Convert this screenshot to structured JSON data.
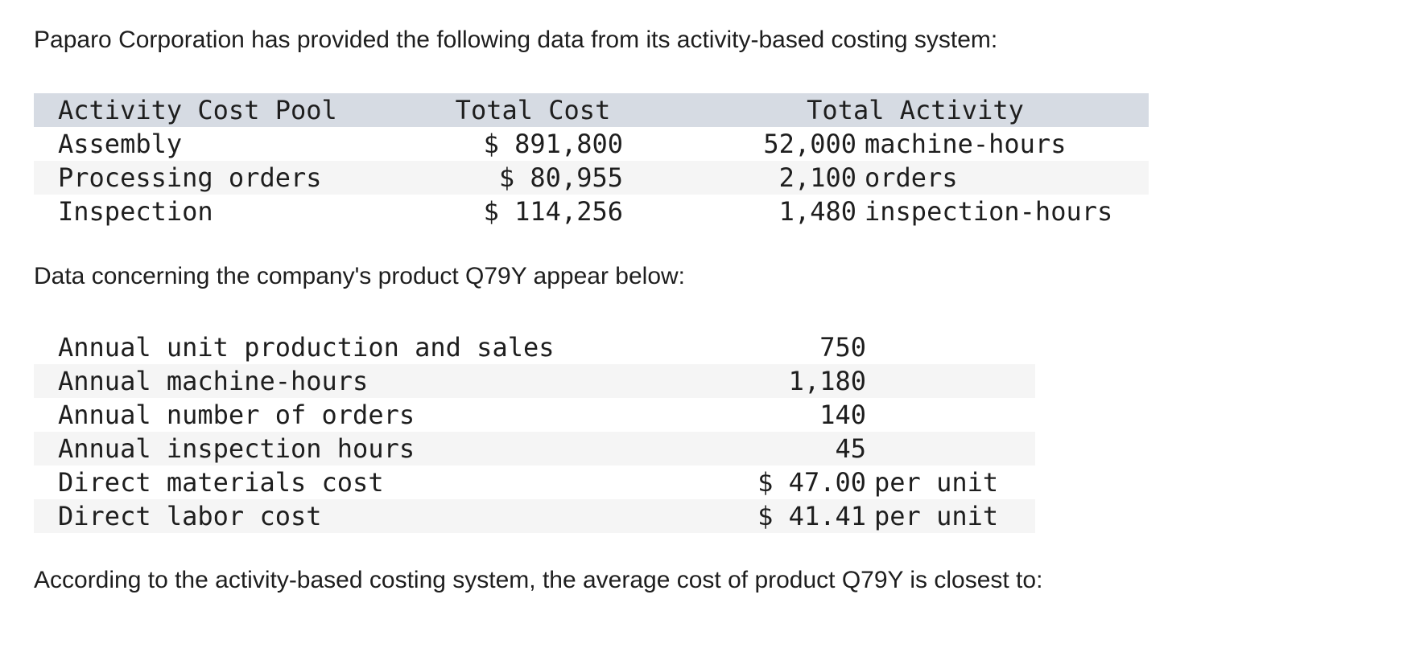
{
  "intro_text": "Paparo Corporation has provided the following data from its activity-based costing system:",
  "activity_table": {
    "headers": [
      "Activity Cost Pool",
      "Total Cost",
      "Total Activity"
    ],
    "rows": [
      {
        "pool": "Assembly",
        "cost": "$ 891,800",
        "activity_qty": "52,000",
        "activity_unit": "machine-hours"
      },
      {
        "pool": "Processing orders",
        "cost": "$ 80,955",
        "activity_qty": "2,100",
        "activity_unit": "orders"
      },
      {
        "pool": "Inspection",
        "cost": "$ 114,256",
        "activity_qty": "1,480",
        "activity_unit": "inspection-hours"
      }
    ]
  },
  "product_text": "Data concerning the company's product Q79Y appear below:",
  "product_table": {
    "rows": [
      {
        "label": "Annual unit production and sales",
        "value": "750",
        "unit": ""
      },
      {
        "label": "Annual machine-hours",
        "value": "1,180",
        "unit": ""
      },
      {
        "label": "Annual number of orders",
        "value": "140",
        "unit": ""
      },
      {
        "label": "Annual inspection hours",
        "value": "45",
        "unit": ""
      },
      {
        "label": "Direct materials cost",
        "value": "$ 47.00",
        "unit": "per unit"
      },
      {
        "label": "Direct labor cost",
        "value": "$ 41.41",
        "unit": "per unit"
      }
    ]
  },
  "question_text": "According to the activity-based costing system, the average cost of product Q79Y is closest to:"
}
